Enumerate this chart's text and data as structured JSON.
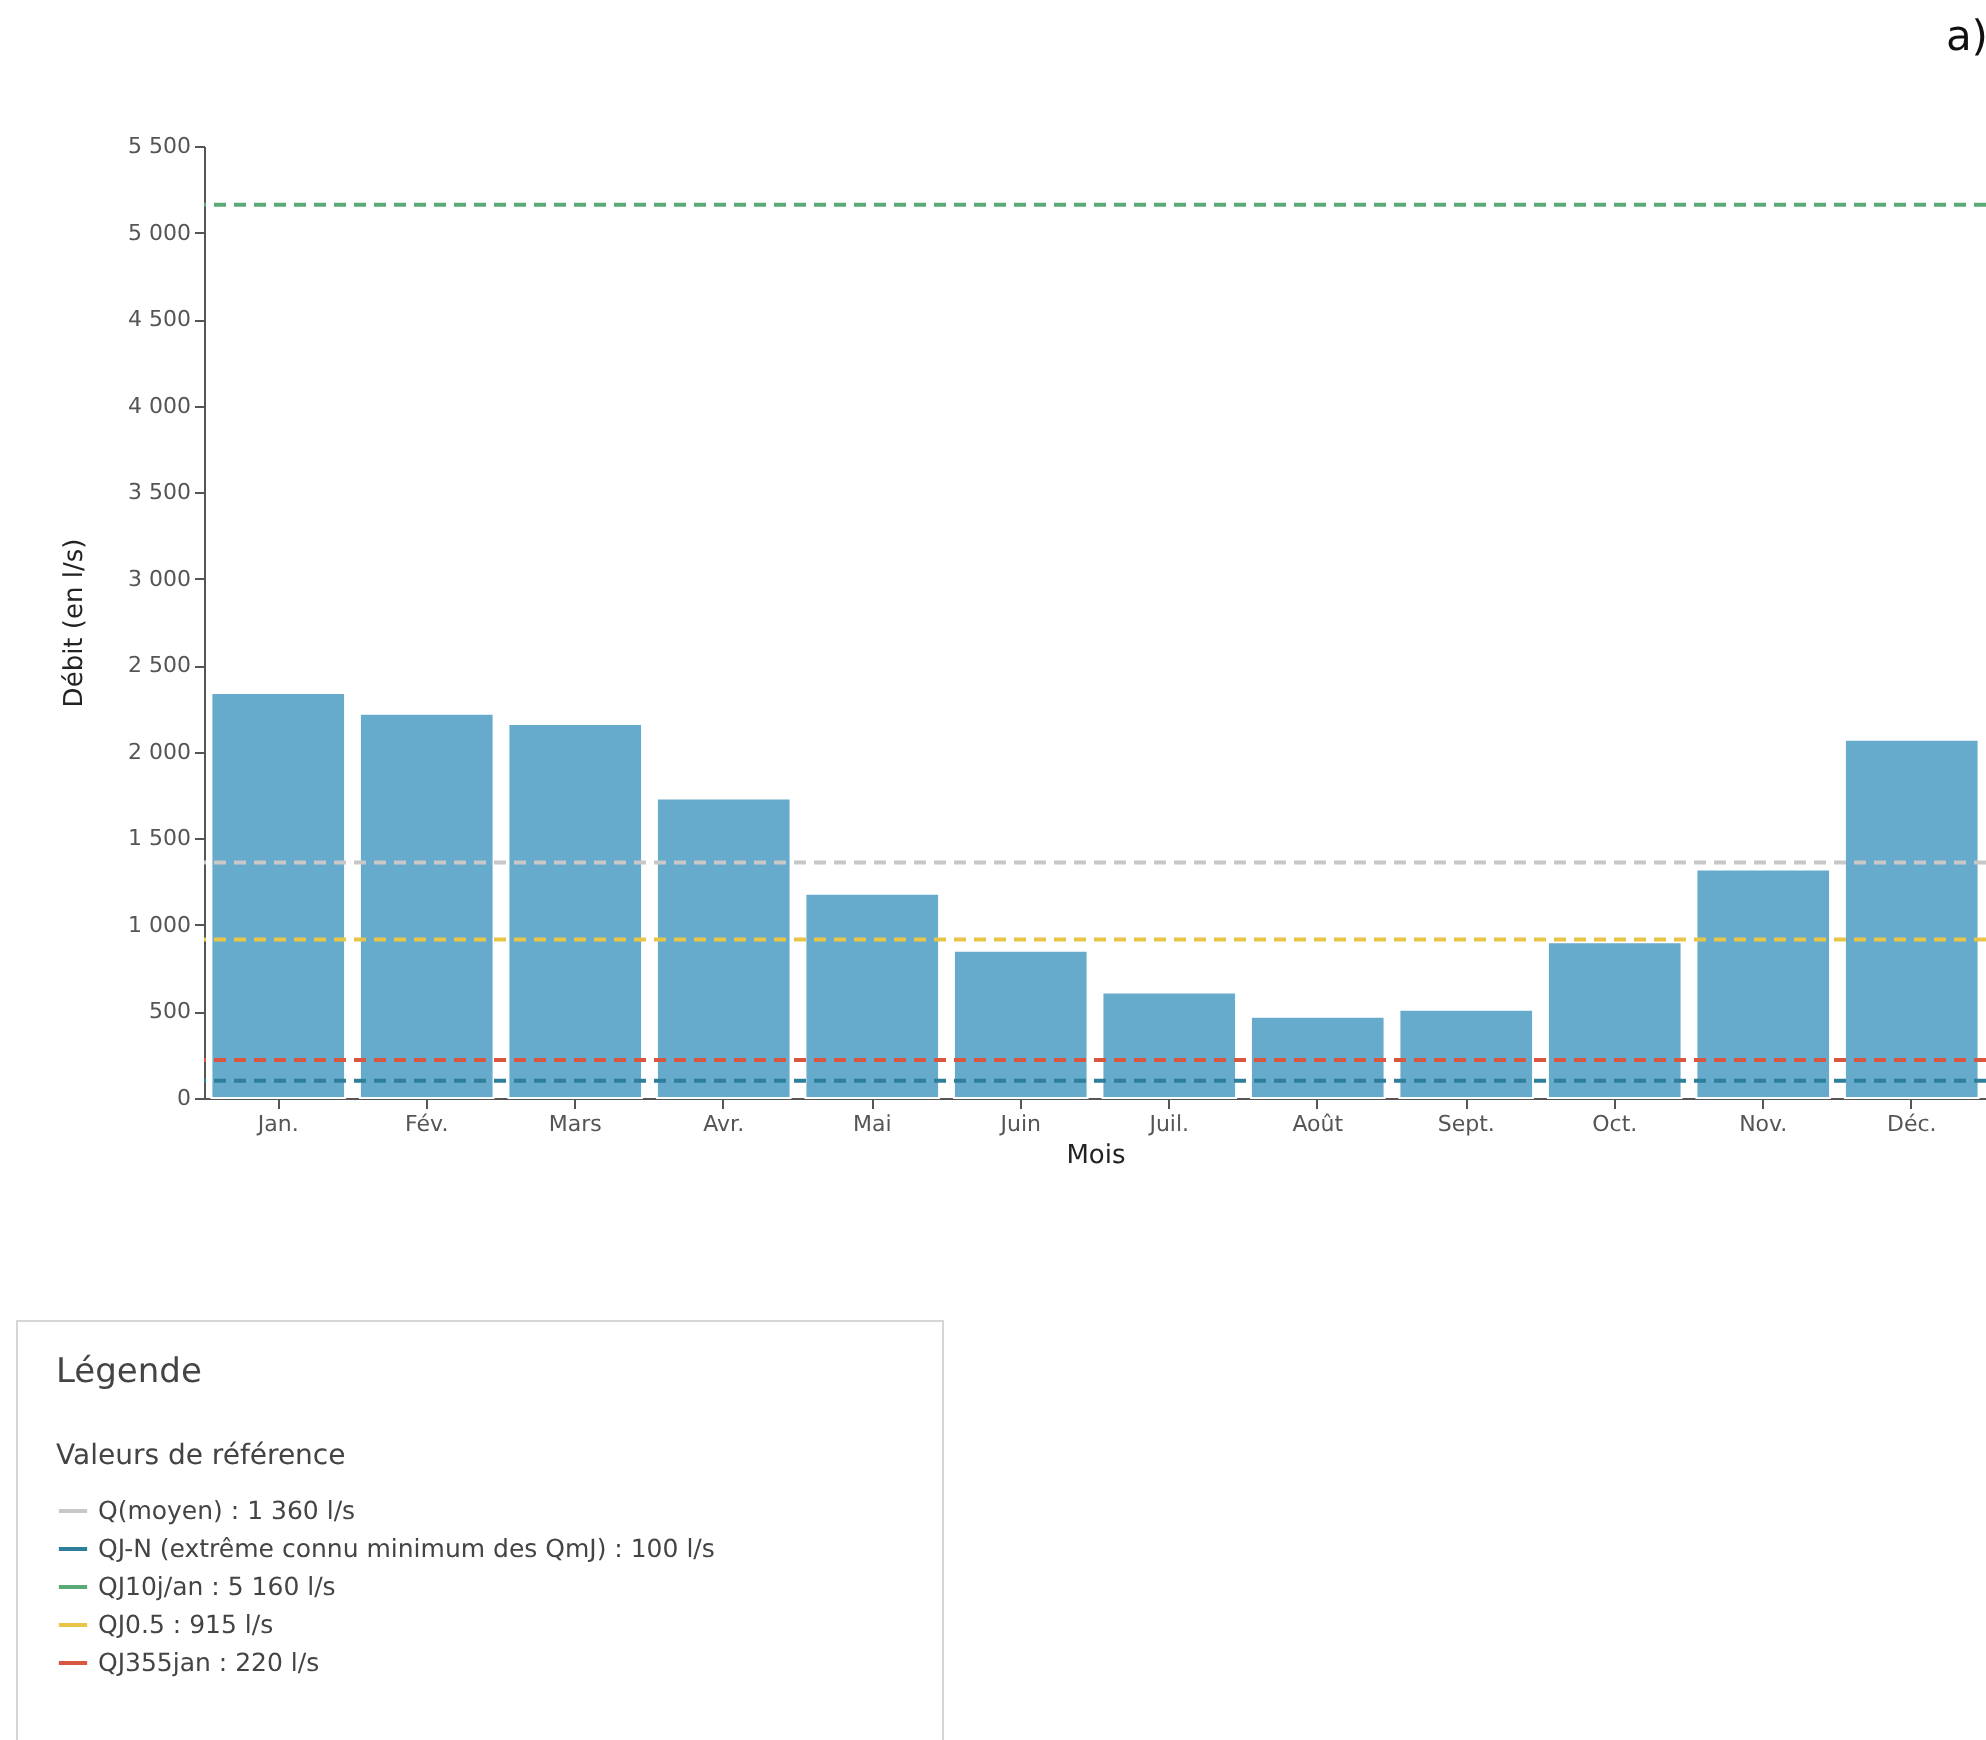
{
  "chart_data": {
    "type": "bar",
    "title": "a)",
    "xlabel": "Mois",
    "ylabel": "Débit (en l/s)",
    "legend_title": "Valeurs de référence",
    "annotations": [
      "Légende"
    ],
    "categories": [
      "Jan.",
      "Fév.",
      "Mars",
      "Avr.",
      "Mai",
      "Juin",
      "Juil.",
      "Août",
      "Sept.",
      "Oct.",
      "Nov.",
      "Déc."
    ],
    "series": [
      {
        "color": "#66abcc",
        "values": [
          2340,
          2220,
          2160,
          1730,
          1180,
          850,
          610,
          470,
          510,
          900,
          1320,
          2070
        ]
      }
    ],
    "ylim": [
      0,
      5500
    ],
    "yticks": [
      {
        "value": 0,
        "label": "0"
      },
      {
        "value": 500,
        "label": "500"
      },
      {
        "value": 1000,
        "label": "1 000"
      },
      {
        "value": 1500,
        "label": "1 500"
      },
      {
        "value": 2000,
        "label": "2 000"
      },
      {
        "value": 2500,
        "label": "2 500"
      },
      {
        "value": 3000,
        "label": "3 000"
      },
      {
        "value": 3500,
        "label": "3 500"
      },
      {
        "value": 4000,
        "label": "4 000"
      },
      {
        "value": 4500,
        "label": "4 500"
      },
      {
        "value": 5000,
        "label": "5 000"
      },
      {
        "value": 5500,
        "label": "5 500"
      }
    ],
    "ref_lines": [
      {
        "axis": "y",
        "value": 1360,
        "label": "Q(moyen) : 1 360 l/s",
        "color": "#c8c8c8",
        "line_style": "dashed"
      },
      {
        "axis": "y",
        "value": 100,
        "label": "QJ-N (extrême connu minimum des QmJ) : 100 l/s",
        "color": "#2f7f9b",
        "line_style": "dashed"
      },
      {
        "axis": "y",
        "value": 5160,
        "label": "QJ10j/an : 5 160 l/s",
        "color": "#5aaa78",
        "line_style": "dashed"
      },
      {
        "axis": "y",
        "value": 915,
        "label": "QJ0.5 : 915 l/s",
        "color": "#e8c547",
        "line_style": "dashed"
      },
      {
        "axis": "y",
        "value": 220,
        "label": "QJ355jan : 220 l/s",
        "color": "#d9573e",
        "line_style": "dashed"
      }
    ],
    "legend": "bottom left"
  }
}
